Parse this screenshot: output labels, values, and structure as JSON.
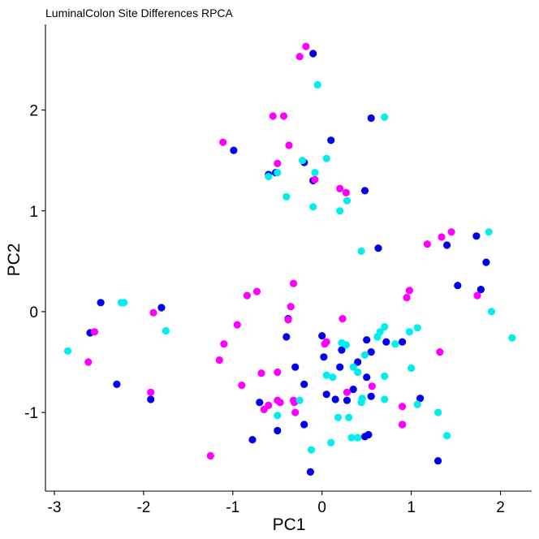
{
  "chart_data": {
    "type": "scatter",
    "title": "LuminalColon Site Differences RPCA",
    "xlabel": "PC1",
    "ylabel": "PC2",
    "xlim": [
      -3.1,
      2.35
    ],
    "ylim": [
      -1.78,
      2.85
    ],
    "xticks": [
      -3,
      -2,
      -1,
      0,
      1,
      2
    ],
    "yticks": [
      -1,
      0,
      1,
      2
    ],
    "grid": false,
    "legend": "none",
    "colors": {
      "blue": "#0000ee",
      "magenta": "#ff00ff",
      "cyan": "#00eeee"
    },
    "series": [
      {
        "color": "blue",
        "points": [
          [
            -0.1,
            2.56
          ],
          [
            0.1,
            1.7
          ],
          [
            -0.99,
            1.6
          ],
          [
            -0.2,
            1.48
          ],
          [
            -0.6,
            1.36
          ],
          [
            -0.52,
            1.38
          ],
          [
            -0.1,
            1.3
          ],
          [
            0.48,
            1.2
          ],
          [
            0.55,
            1.92
          ],
          [
            0.63,
            0.63
          ],
          [
            1.4,
            0.66
          ],
          [
            1.73,
            0.75
          ],
          [
            1.84,
            0.49
          ],
          [
            1.52,
            0.26
          ],
          [
            1.78,
            0.22
          ],
          [
            -2.48,
            0.09
          ],
          [
            -2.6,
            -0.21
          ],
          [
            -1.8,
            0.04
          ],
          [
            -2.3,
            -0.72
          ],
          [
            -1.92,
            -0.87
          ],
          [
            -0.4,
            -0.25
          ],
          [
            -0.38,
            -0.07
          ],
          [
            0.0,
            -0.24
          ],
          [
            0.22,
            -0.38
          ],
          [
            0.55,
            -0.4
          ],
          [
            0.5,
            -0.28
          ],
          [
            0.72,
            -0.3
          ],
          [
            0.9,
            -0.3
          ],
          [
            -0.3,
            -0.55
          ],
          [
            -0.2,
            -0.72
          ],
          [
            0.02,
            -0.45
          ],
          [
            0.2,
            -0.55
          ],
          [
            0.4,
            -0.5
          ],
          [
            0.5,
            -0.65
          ],
          [
            0.35,
            -0.77
          ],
          [
            0.05,
            -0.82
          ],
          [
            0.15,
            -0.87
          ],
          [
            0.28,
            -0.88
          ],
          [
            0.55,
            -0.84
          ],
          [
            1.1,
            -0.86
          ],
          [
            -0.7,
            -0.9
          ],
          [
            -0.5,
            -1.18
          ],
          [
            -0.78,
            -1.27
          ],
          [
            -0.2,
            -1.12
          ],
          [
            0.48,
            -1.24
          ],
          [
            0.52,
            -1.22
          ],
          [
            0.9,
            -1.12
          ],
          [
            1.3,
            -1.48
          ],
          [
            -0.13,
            -1.59
          ]
        ]
      },
      {
        "color": "magenta",
        "points": [
          [
            -0.18,
            2.63
          ],
          [
            -0.25,
            2.53
          ],
          [
            -0.55,
            1.94
          ],
          [
            -0.43,
            1.94
          ],
          [
            -1.11,
            1.68
          ],
          [
            -0.37,
            1.65
          ],
          [
            -0.5,
            1.47
          ],
          [
            -0.08,
            1.31
          ],
          [
            0.2,
            1.22
          ],
          [
            0.27,
            1.18
          ],
          [
            1.45,
            0.79
          ],
          [
            1.18,
            0.67
          ],
          [
            1.34,
            0.74
          ],
          [
            1.74,
            0.16
          ],
          [
            -0.32,
            0.28
          ],
          [
            -0.73,
            0.2
          ],
          [
            -0.84,
            0.16
          ],
          [
            -0.95,
            -0.13
          ],
          [
            -0.35,
            0.05
          ],
          [
            -0.38,
            -0.08
          ],
          [
            -1.1,
            -0.32
          ],
          [
            -1.15,
            -0.48
          ],
          [
            -1.89,
            -0.01
          ],
          [
            -2.55,
            -0.2
          ],
          [
            -2.62,
            -0.5
          ],
          [
            -1.92,
            -0.8
          ],
          [
            -1.25,
            -1.43
          ],
          [
            0.98,
            0.21
          ],
          [
            0.95,
            0.14
          ],
          [
            0.23,
            -0.07
          ],
          [
            -0.68,
            -0.61
          ],
          [
            -0.5,
            -0.6
          ],
          [
            -0.9,
            -0.73
          ],
          [
            0.05,
            -0.3
          ],
          [
            0.03,
            -0.32
          ],
          [
            0.56,
            -0.74
          ],
          [
            0.28,
            -0.8
          ],
          [
            1.32,
            -0.4
          ],
          [
            -0.5,
            -0.88
          ],
          [
            -0.6,
            -0.93
          ],
          [
            -0.47,
            -0.9
          ],
          [
            -0.65,
            -0.97
          ],
          [
            -0.32,
            -0.88
          ],
          [
            -0.31,
            -0.9
          ],
          [
            -0.3,
            -1.0
          ],
          [
            0.9,
            -0.94
          ],
          [
            0.9,
            -1.12
          ]
        ]
      },
      {
        "color": "cyan",
        "points": [
          [
            -0.05,
            2.25
          ],
          [
            0.7,
            1.93
          ],
          [
            0.05,
            1.52
          ],
          [
            -0.22,
            1.5
          ],
          [
            -0.08,
            1.38
          ],
          [
            -0.6,
            1.34
          ],
          [
            -0.5,
            1.38
          ],
          [
            -0.4,
            1.14
          ],
          [
            -0.1,
            1.04
          ],
          [
            0.28,
            1.1
          ],
          [
            0.2,
            1.0
          ],
          [
            0.44,
            0.6
          ],
          [
            1.87,
            0.79
          ],
          [
            1.9,
            0.0
          ],
          [
            2.13,
            -0.26
          ],
          [
            -2.22,
            0.09
          ],
          [
            -2.25,
            0.09
          ],
          [
            -1.75,
            -0.19
          ],
          [
            -2.85,
            -0.39
          ],
          [
            0.22,
            -0.31
          ],
          [
            0.27,
            -0.33
          ],
          [
            0.05,
            -0.63
          ],
          [
            0.12,
            -0.65
          ],
          [
            0.35,
            -0.55
          ],
          [
            0.4,
            -0.6
          ],
          [
            0.48,
            -0.43
          ],
          [
            0.62,
            -0.25
          ],
          [
            0.65,
            -0.2
          ],
          [
            0.7,
            -0.15
          ],
          [
            0.82,
            -0.32
          ],
          [
            0.98,
            -0.2
          ],
          [
            1.07,
            -0.16
          ],
          [
            1.0,
            -0.56
          ],
          [
            0.7,
            -0.64
          ],
          [
            0.7,
            -0.87
          ],
          [
            0.44,
            -0.9
          ],
          [
            0.45,
            -0.86
          ],
          [
            -0.5,
            -1.03
          ],
          [
            -0.25,
            -0.88
          ],
          [
            0.18,
            -1.05
          ],
          [
            0.1,
            -1.3
          ],
          [
            0.3,
            -1.05
          ],
          [
            0.33,
            -1.25
          ],
          [
            0.4,
            -1.25
          ],
          [
            -0.12,
            -1.37
          ],
          [
            1.07,
            -0.92
          ],
          [
            1.3,
            -1.0
          ],
          [
            1.4,
            -1.23
          ]
        ]
      }
    ]
  }
}
